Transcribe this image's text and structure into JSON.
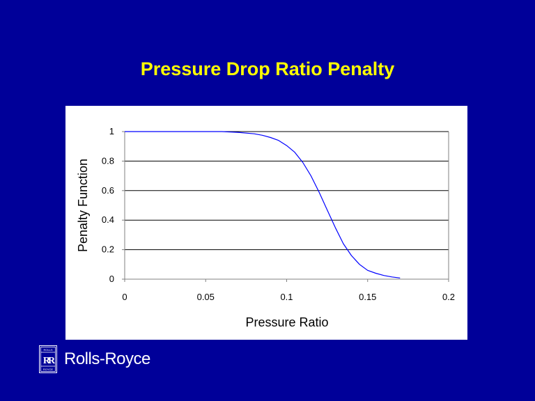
{
  "slide": {
    "title": "Pressure Drop Ratio Penalty",
    "background_color": "#000099",
    "title_color": "#ffff00"
  },
  "logo": {
    "text": "Rolls-Royce",
    "badge_letters": "RR",
    "badge_top_text": "ROLLS",
    "badge_bottom_text": "ROYCE"
  },
  "chart_data": {
    "type": "line",
    "title": "",
    "xlabel": "Pressure Ratio",
    "ylabel": "Penalty Function",
    "xlim": [
      0,
      0.2
    ],
    "ylim": [
      0,
      1
    ],
    "x_ticks": [
      "0",
      "0.05",
      "0.1",
      "0.15",
      "0.2"
    ],
    "y_ticks": [
      "0",
      "0.2",
      "0.4",
      "0.6",
      "0.8",
      "1"
    ],
    "grid": "horizontal",
    "legend": "none",
    "line_color": "#0000ff",
    "series": [
      {
        "x": [
          0,
          0.02,
          0.04,
          0.06,
          0.07,
          0.08,
          0.085,
          0.09,
          0.095,
          0.1,
          0.105,
          0.11,
          0.115,
          0.12,
          0.125,
          0.13,
          0.135,
          0.14,
          0.145,
          0.15,
          0.155,
          0.16,
          0.165,
          0.17
        ],
        "y": [
          1,
          1,
          1,
          1,
          0.995,
          0.985,
          0.975,
          0.96,
          0.94,
          0.905,
          0.86,
          0.79,
          0.7,
          0.59,
          0.47,
          0.35,
          0.24,
          0.16,
          0.1,
          0.06,
          0.04,
          0.025,
          0.015,
          0.008
        ]
      }
    ]
  }
}
